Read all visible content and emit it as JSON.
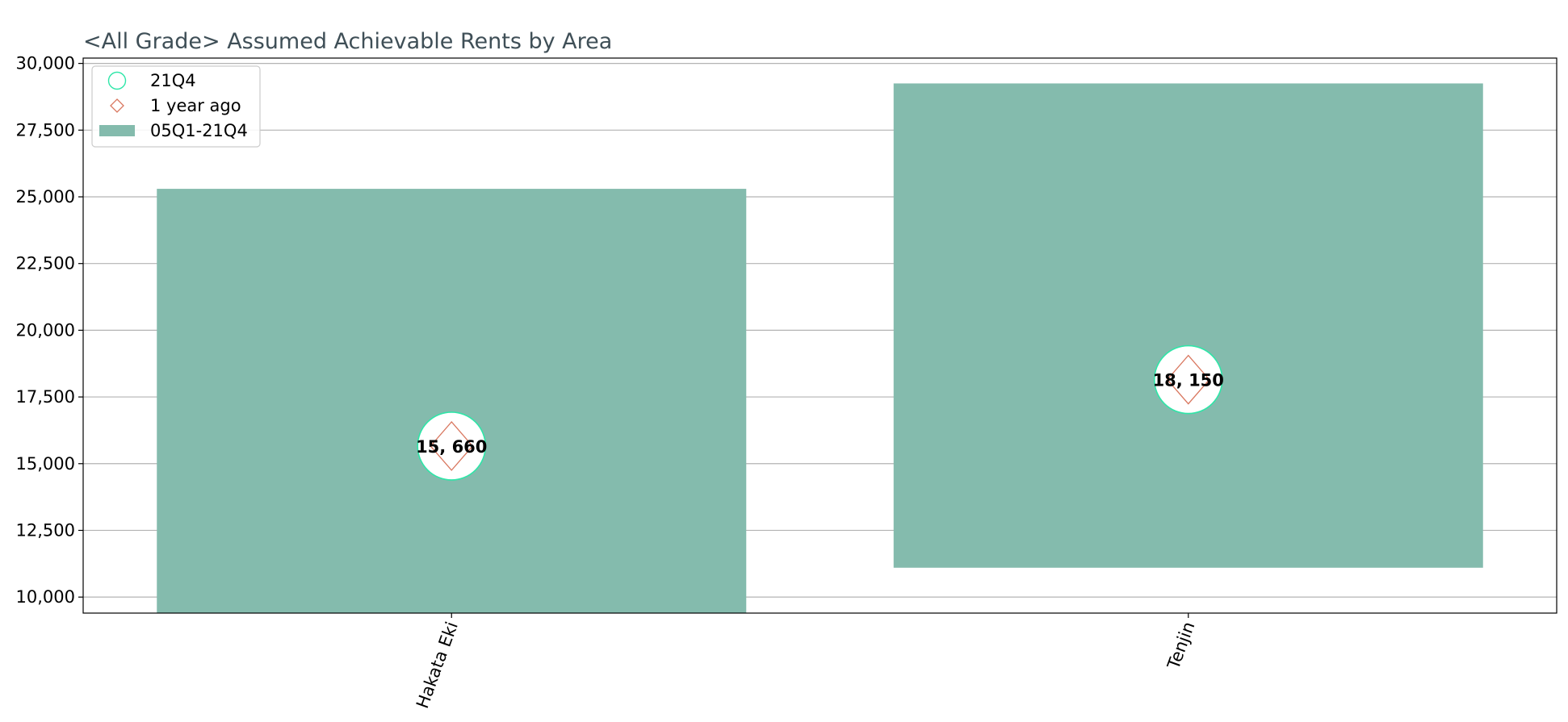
{
  "chart_data": {
    "type": "bar",
    "title": "<All Grade> Assumed Achievable Rents by Area",
    "xlabel": "",
    "ylabel": "",
    "categories": [
      "Hakata Eki",
      "Tenjin"
    ],
    "ylim": [
      9400,
      30200
    ],
    "y_ticks": [
      10000,
      12500,
      15000,
      17500,
      20000,
      22500,
      25000,
      27500,
      30000
    ],
    "y_tick_labels": [
      "10,000",
      "12,500",
      "15,000",
      "17,500",
      "20,000",
      "22,500",
      "25,000",
      "27,500",
      "30,000"
    ],
    "grid": "y",
    "legend_position": "top-left",
    "series": [
      {
        "name": "05Q1-21Q4",
        "kind": "range-bar",
        "low": [
          9400,
          11100
        ],
        "high": [
          25300,
          29250
        ],
        "color": "#84bbad"
      },
      {
        "name": "21Q4",
        "kind": "circle-marker",
        "values": [
          15660,
          18150
        ],
        "color": "#2ee6a8"
      },
      {
        "name": "1 year ago",
        "kind": "diamond-marker",
        "values": [
          15660,
          18150
        ],
        "color": "#d9775f"
      }
    ],
    "data_labels": [
      "15, 660",
      "18, 150"
    ]
  }
}
